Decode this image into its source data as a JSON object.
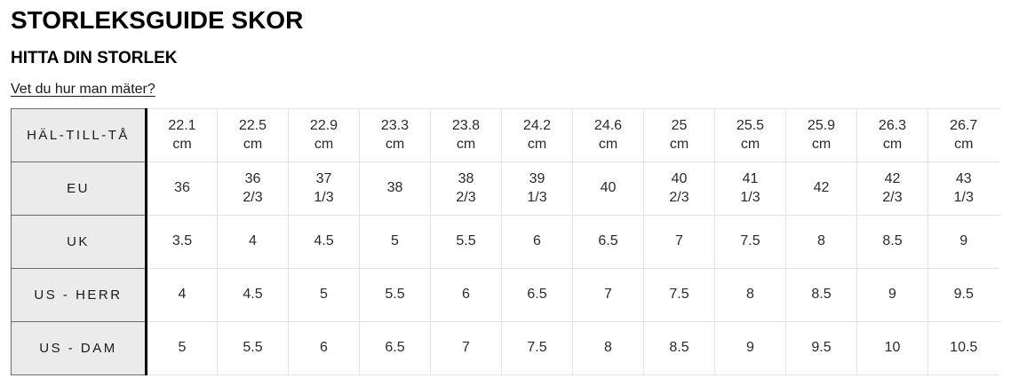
{
  "header": {
    "title": "STORLEKSGUIDE SKOR",
    "subtitle": "HITTA DIN STORLEK",
    "measure_link": "Vet du hur man mäter?"
  },
  "colors": {
    "header_cell_bg": "#ebebeb",
    "header_cell_border": "#6d6d6d",
    "header_divider": "#000000",
    "grid_line": "#e3e3e3",
    "text": "#1a1a1a"
  },
  "table": {
    "rows": [
      {
        "label": "HÄL-TILL-TÅ",
        "values": [
          "22.1\ncm",
          "22.5\ncm",
          "22.9\ncm",
          "23.3\ncm",
          "23.8\ncm",
          "24.2\ncm",
          "24.6\ncm",
          "25\ncm",
          "25.5\ncm",
          "25.9\ncm",
          "26.3\ncm",
          "26.7\ncm"
        ]
      },
      {
        "label": "EU",
        "values": [
          "36",
          "36\n2/3",
          "37\n1/3",
          "38",
          "38\n2/3",
          "39\n1/3",
          "40",
          "40\n2/3",
          "41\n1/3",
          "42",
          "42\n2/3",
          "43\n1/3"
        ]
      },
      {
        "label": "UK",
        "values": [
          "3.5",
          "4",
          "4.5",
          "5",
          "5.5",
          "6",
          "6.5",
          "7",
          "7.5",
          "8",
          "8.5",
          "9"
        ]
      },
      {
        "label": "US - HERR",
        "values": [
          "4",
          "4.5",
          "5",
          "5.5",
          "6",
          "6.5",
          "7",
          "7.5",
          "8",
          "8.5",
          "9",
          "9.5"
        ]
      },
      {
        "label": "US - DAM",
        "values": [
          "5",
          "5.5",
          "6",
          "6.5",
          "7",
          "7.5",
          "8",
          "8.5",
          "9",
          "9.5",
          "10",
          "10.5"
        ]
      }
    ]
  }
}
